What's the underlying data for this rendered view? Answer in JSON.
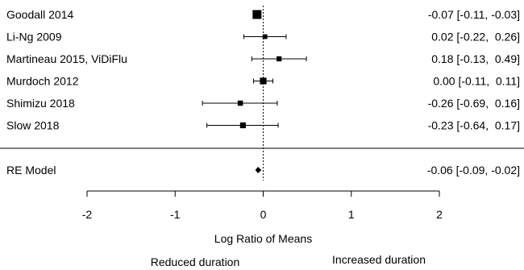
{
  "chart_data": {
    "type": "forest",
    "xlabel": "Log Ratio of Means",
    "xlim": [
      -2,
      2
    ],
    "xticks": [
      "-2",
      "-1",
      "0",
      "1",
      "2"
    ],
    "reference_line": 0,
    "studies": [
      {
        "label": "Goodall 2014",
        "estimate": -0.07,
        "lower": -0.11,
        "upper": -0.03,
        "ci_text": "-0.07 [-0.11, -0.03]",
        "weight": 1.0
      },
      {
        "label": "Li-Ng 2009",
        "estimate": 0.02,
        "lower": -0.22,
        "upper": 0.26,
        "ci_text": "0.02 [-0.22,  0.26]",
        "weight": 0.15
      },
      {
        "label": "Martineau 2015, ViDiFlu",
        "estimate": 0.18,
        "lower": -0.13,
        "upper": 0.49,
        "ci_text": "0.18 [-0.13,  0.49]",
        "weight": 0.2
      },
      {
        "label": "Murdoch 2012",
        "estimate": 0.0,
        "lower": -0.11,
        "upper": 0.11,
        "ci_text": "0.00 [-0.11,  0.11]",
        "weight": 0.45
      },
      {
        "label": "Shimizu 2018",
        "estimate": -0.26,
        "lower": -0.69,
        "upper": 0.16,
        "ci_text": "-0.26 [-0.69,  0.16]",
        "weight": 0.22
      },
      {
        "label": "Slow 2018",
        "estimate": -0.23,
        "lower": -0.64,
        "upper": 0.17,
        "ci_text": "-0.23 [-0.64,  0.17]",
        "weight": 0.3
      }
    ],
    "summary": {
      "label": "RE Model",
      "estimate": -0.06,
      "lower": -0.09,
      "upper": -0.02,
      "ci_text": "-0.06 [-0.09, -0.02]"
    },
    "annotations": {
      "left": "Reduced duration",
      "right": "Increased duration"
    }
  }
}
